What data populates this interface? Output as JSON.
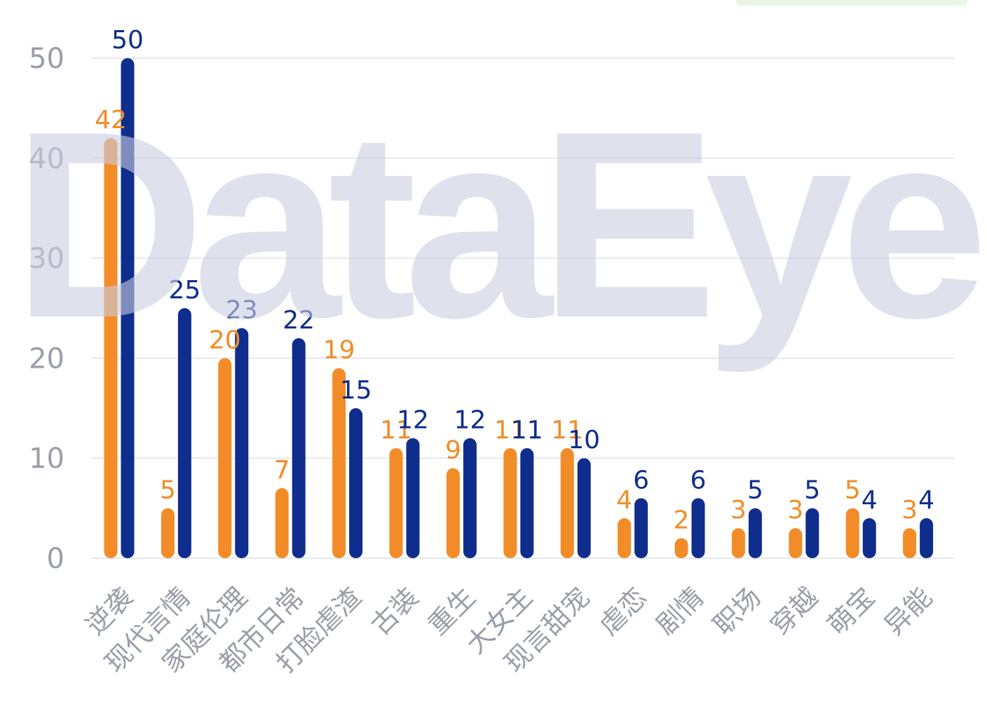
{
  "watermark": {
    "text": "DataEye"
  },
  "colors": {
    "series_a": "#F28C28",
    "series_b": "#0F2D8C",
    "axis_text": "#9a9ea8",
    "grid": "#e6e8ef",
    "watermark": "#c9cde0"
  },
  "chart_data": {
    "type": "bar",
    "categories": [
      "逆袭",
      "现代言情",
      "家庭伦理",
      "都市日常",
      "打脸虐渣",
      "古装",
      "重生",
      "大女主",
      "现言甜宠",
      "虐恋",
      "剧情",
      "职场",
      "穿越",
      "萌宝",
      "异能"
    ],
    "series": [
      {
        "values": [
          42,
          5,
          20,
          7,
          19,
          11,
          9,
          11,
          11,
          4,
          2,
          3,
          3,
          5,
          3
        ]
      },
      {
        "values": [
          50,
          25,
          23,
          22,
          15,
          12,
          12,
          11,
          10,
          6,
          6,
          5,
          5,
          4,
          4
        ]
      }
    ],
    "yticks": [
      "0",
      "10",
      "20",
      "30",
      "40",
      "50"
    ],
    "ylim": [
      0,
      50
    ],
    "grid": true,
    "legend": "top-right"
  }
}
